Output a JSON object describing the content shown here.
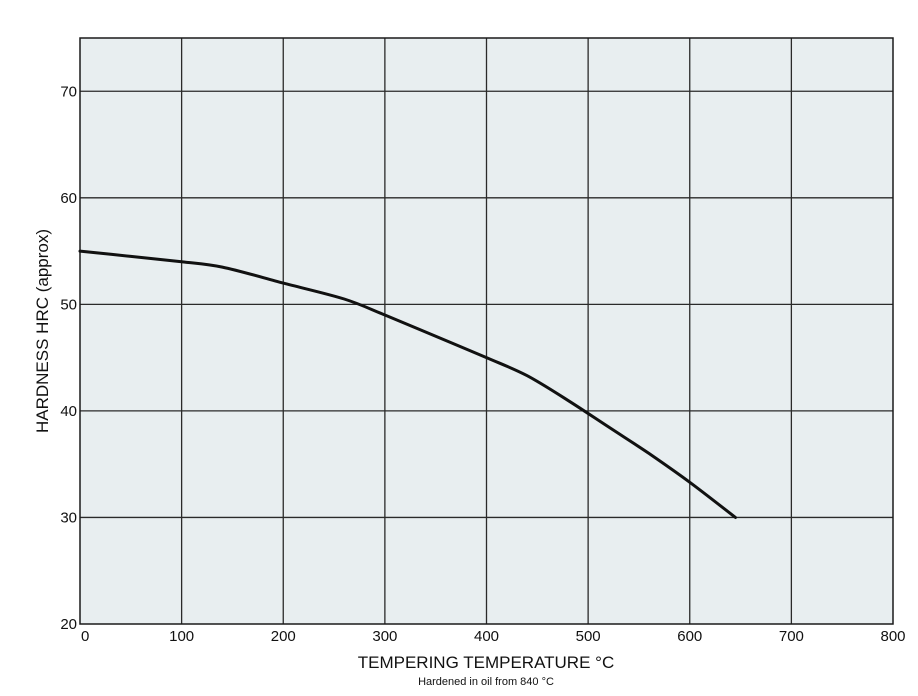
{
  "chart_data": {
    "type": "line",
    "xlabel": "TEMPERING TEMPERATURE °C",
    "ylabel": "HARDNESS HRC (approx)",
    "note": "Hardened in oil from 840 °C",
    "xlim": [
      0,
      800
    ],
    "ylim": [
      20,
      75
    ],
    "x_ticks": [
      "0",
      "100",
      "200",
      "300",
      "400",
      "500",
      "600",
      "700",
      "800"
    ],
    "y_ticks": [
      "20",
      "30",
      "40",
      "50",
      "60",
      "70"
    ],
    "grid": true,
    "colors": {
      "plot_bg": "#e8eef0",
      "grid": "#2a2a2a",
      "line": "#111111"
    },
    "series": [
      {
        "x": [
          0,
          50,
          100,
          140,
          200,
          260,
          300,
          350,
          400,
          440,
          480,
          520,
          560,
          600,
          645
        ],
        "y": [
          55,
          54.5,
          54,
          53.5,
          52,
          50.5,
          49,
          47,
          45,
          43.3,
          41,
          38.5,
          36,
          33.3,
          30
        ]
      }
    ]
  }
}
